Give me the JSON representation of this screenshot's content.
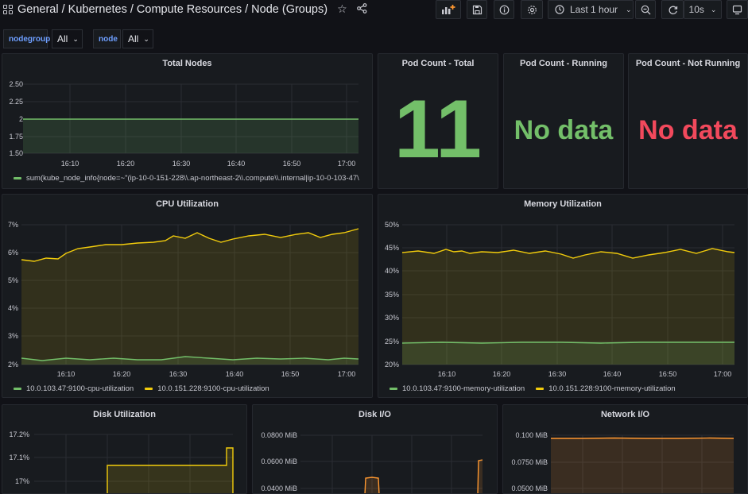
{
  "header": {
    "breadcrumb": "General  / Kubernetes / Compute Resources / Node (Groups)",
    "time_range": "Last 1 hour",
    "refresh": "10s"
  },
  "variables": [
    {
      "label": "nodegroup",
      "value": "All"
    },
    {
      "label": "node",
      "value": "All"
    }
  ],
  "colors": {
    "green": "#73bf69",
    "yellow": "#f2cc0c",
    "orange": "#ff9830",
    "red": "#f2495c",
    "blue": "#6e9fff"
  },
  "icons": [
    "dashboards-grid-icon",
    "star-icon",
    "share-icon",
    "add-panel-icon",
    "save-icon",
    "info-icon",
    "settings-icon",
    "clock-icon",
    "zoom-out-icon",
    "refresh-icon",
    "tv-mode-icon"
  ],
  "panels": {
    "total_nodes": {
      "title": "Total Nodes",
      "legend": "sum(kube_node_info{node=~\"(ip-10-0-151-228\\\\.ap-northeast-2\\\\.compute\\\\.internal|ip-10-0-103-47\\"
    },
    "pod_total": {
      "title": "Pod Count - Total",
      "value": "11"
    },
    "pod_running": {
      "title": "Pod Count - Running",
      "value": "No data"
    },
    "pod_not_running": {
      "title": "Pod Count - Not Running",
      "value": "No data"
    },
    "cpu": {
      "title": "CPU Utilization",
      "legend": [
        "10.0.103.47:9100-cpu-utilization",
        "10.0.151.228:9100-cpu-utilization"
      ]
    },
    "memory": {
      "title": "Memory Utilization",
      "legend": [
        "10.0.103.47:9100-memory-utilization",
        "10.0.151.228:9100-memory-utilization"
      ]
    },
    "disk_util": {
      "title": "Disk Utilization"
    },
    "disk_io": {
      "title": "Disk I/O"
    },
    "network_io": {
      "title": "Network I/O"
    }
  },
  "chart_data": [
    {
      "type": "area",
      "title": "Total Nodes",
      "x_ticks": [
        "16:10",
        "16:20",
        "16:30",
        "16:40",
        "16:50",
        "17:00"
      ],
      "y_ticks": [
        "1.50",
        "1.75",
        "2",
        "2.25",
        "2.50"
      ],
      "ylim": [
        1.5,
        2.5
      ],
      "series": [
        {
          "name": "sum(kube_node_info{node=~\"(ip-10-0-151-228\\\\.ap-northeast-2\\\\.compute\\\\.internal|ip-10-0-103-47\\",
          "values": [
            2,
            2
          ]
        }
      ]
    },
    {
      "type": "area",
      "title": "CPU Utilization",
      "x_ticks": [
        "16:10",
        "16:20",
        "16:30",
        "16:40",
        "16:50",
        "17:00"
      ],
      "y_ticks": [
        "2%",
        "3%",
        "4%",
        "5%",
        "6%",
        "7%"
      ],
      "ylim": [
        2,
        7
      ],
      "series": [
        {
          "name": "10.0.103.47:9100-cpu-utilization",
          "values": [
            2.2,
            2.2,
            2.25,
            2.2,
            2.25,
            2.3,
            2.25,
            2.2,
            2.25,
            2.2,
            2.25,
            2.3
          ]
        },
        {
          "name": "10.0.151.228:9100-cpu-utilization",
          "values": [
            5.8,
            5.8,
            6.0,
            6.05,
            6.15,
            6.3,
            6.4,
            6.35,
            6.45,
            6.6,
            6.65,
            6.85
          ]
        }
      ]
    },
    {
      "type": "area",
      "title": "Memory Utilization",
      "x_ticks": [
        "16:10",
        "16:20",
        "16:30",
        "16:40",
        "16:50",
        "17:00"
      ],
      "y_ticks": [
        "20%",
        "25%",
        "30%",
        "35%",
        "40%",
        "45%",
        "50%"
      ],
      "ylim": [
        20,
        50
      ],
      "series": [
        {
          "name": "10.0.103.47:9100-memory-utilization",
          "values": [
            24.8,
            24.8,
            24.9,
            24.8,
            24.9,
            24.9,
            24.8,
            24.9,
            24.9,
            24.8,
            24.9,
            24.9
          ]
        },
        {
          "name": "10.0.151.228:9100-memory-utilization",
          "values": [
            44.0,
            44.6,
            44.3,
            44.0,
            44.2,
            43.8,
            44.3,
            43.5,
            44.1,
            44.0,
            44.5,
            43.7
          ]
        }
      ]
    },
    {
      "type": "area",
      "title": "Disk Utilization",
      "y_ticks": [
        "17%",
        "17.1%",
        "17.2%"
      ],
      "series": [
        {
          "name": "",
          "values": [
            17.06,
            17.06,
            17.06,
            17.06,
            17.14
          ]
        }
      ]
    },
    {
      "type": "area",
      "title": "Disk I/O",
      "y_ticks": [
        "0.0400 MiB",
        "0.0600 MiB",
        "0.0800 MiB"
      ],
      "series": [
        {
          "name": "",
          "values": [
            0.0,
            0.048,
            0.0,
            0.062
          ]
        }
      ]
    },
    {
      "type": "area",
      "title": "Network I/O",
      "y_ticks": [
        "0.0500 MiB",
        "0.0750 MiB",
        "0.100 MiB"
      ],
      "series": [
        {
          "name": "",
          "values": [
            0.097,
            0.097,
            0.097,
            0.097
          ]
        }
      ]
    }
  ]
}
